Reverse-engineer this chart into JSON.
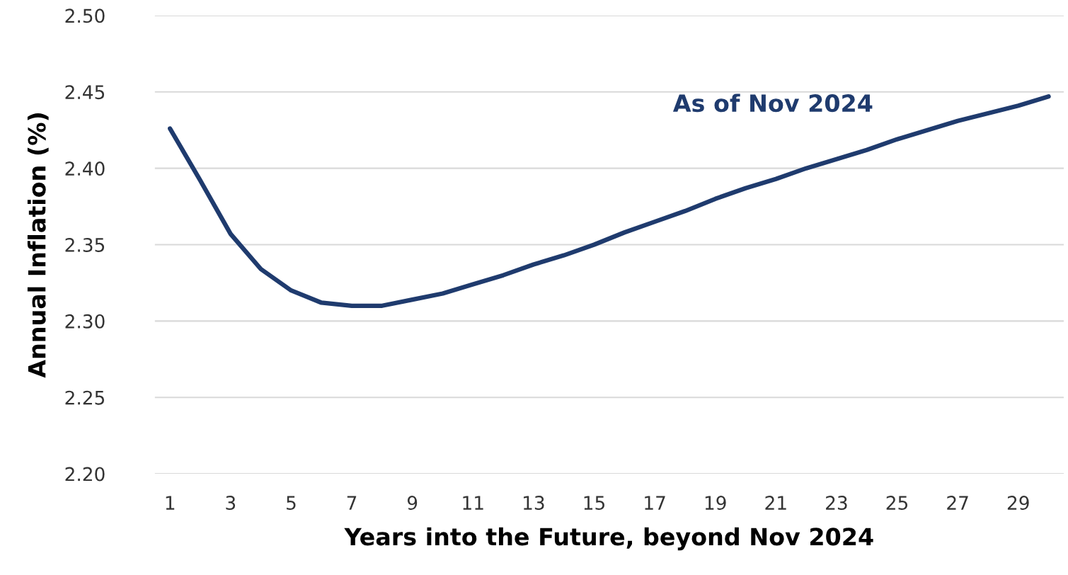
{
  "chart_data": {
    "type": "line",
    "xlabel": "Years into the Future, beyond Nov 2024",
    "ylabel": "Annual Inflation (%)",
    "annotations": [
      "As of Nov 2024"
    ],
    "categories": [
      "1",
      null,
      "3",
      null,
      "5",
      null,
      "7",
      null,
      "9",
      null,
      "11",
      null,
      "13",
      null,
      "15",
      null,
      "17",
      null,
      "19",
      null,
      "21",
      null,
      "23",
      null,
      "25",
      null,
      "27",
      null,
      "29",
      null
    ],
    "series": [
      {
        "color": "#1f3b6e",
        "values": [
          2.426,
          2.392,
          2.357,
          2.334,
          2.32,
          2.312,
          2.31,
          2.31,
          2.314,
          2.318,
          2.324,
          2.33,
          2.337,
          2.343,
          2.35,
          2.358,
          2.365,
          2.372,
          2.38,
          2.387,
          2.393,
          2.4,
          2.406,
          2.412,
          2.419,
          2.425,
          2.431,
          2.436,
          2.441,
          2.447
        ]
      }
    ],
    "ylim": [
      2.2,
      2.5
    ],
    "yticks": [
      {
        "value": 2.2,
        "label": "2.20"
      },
      {
        "value": 2.25,
        "label": "2.25"
      },
      {
        "value": 2.3,
        "label": "2.30"
      },
      {
        "value": 2.35,
        "label": "2.35"
      },
      {
        "value": 2.4,
        "label": "2.40"
      },
      {
        "value": 2.45,
        "label": "2.45"
      },
      {
        "value": 2.5,
        "label": "2.50"
      }
    ],
    "grid": "y",
    "marker": "none",
    "line_style": "solid"
  }
}
